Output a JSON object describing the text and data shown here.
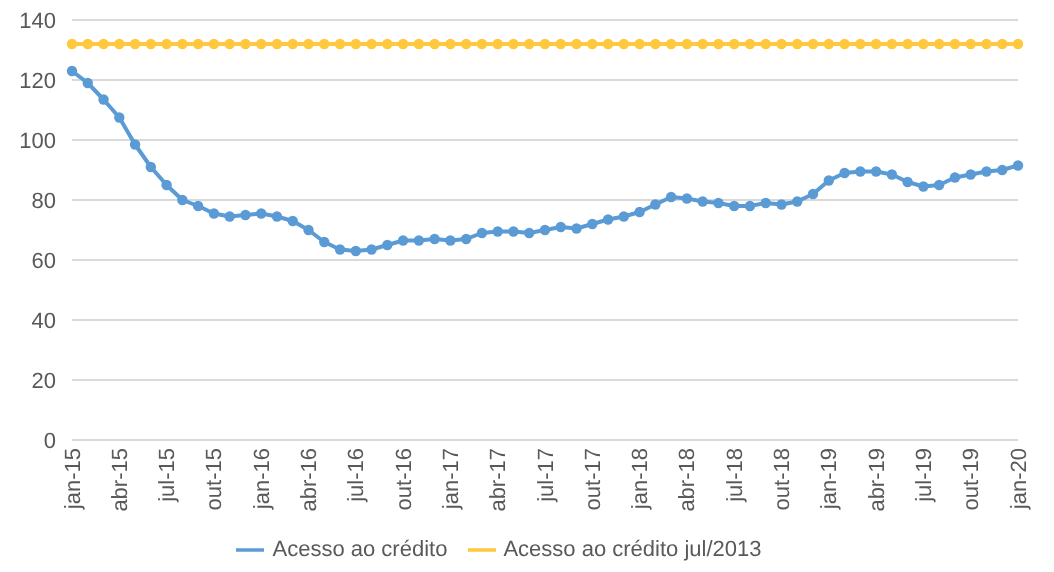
{
  "chart_data": {
    "type": "line",
    "categories": [
      "jan-15",
      null,
      null,
      "abr-15",
      null,
      null,
      "jul-15",
      null,
      null,
      "out-15",
      null,
      null,
      "jan-16",
      null,
      null,
      "abr-16",
      null,
      null,
      "jul-16",
      null,
      null,
      "out-16",
      null,
      null,
      "jan-17",
      null,
      null,
      "abr-17",
      null,
      null,
      "jul-17",
      null,
      null,
      "out-17",
      null,
      null,
      "jan-18",
      null,
      null,
      "abr-18",
      null,
      null,
      "jul-18",
      null,
      null,
      "out-18",
      null,
      null,
      "jan-19",
      null,
      null,
      "abr-19",
      null,
      null,
      "jul-19",
      null,
      null,
      "out-19",
      null,
      null,
      "jan-20"
    ],
    "series": [
      {
        "name": "Acesso ao crédito",
        "color": "#5b9bd5",
        "values": [
          123,
          119,
          113.5,
          107.5,
          98.5,
          91,
          85,
          80,
          78,
          75.5,
          74.5,
          75,
          75.5,
          74.5,
          73,
          70,
          66,
          63.5,
          63,
          63.5,
          65,
          66.5,
          66.5,
          67,
          66.5,
          67,
          69,
          69.5,
          69.5,
          69,
          70,
          71,
          70.5,
          72,
          73.5,
          74.5,
          76,
          78.5,
          81,
          80.5,
          79.5,
          79,
          78,
          78,
          79,
          78.5,
          79.5,
          82,
          86.5,
          89,
          89.5,
          89.5,
          88.5,
          86,
          84.5,
          85,
          87.5,
          88.5,
          89.5,
          90,
          91.5
        ]
      },
      {
        "name": "Acesso ao crédito jul/2013",
        "color": "#ffc83d",
        "values": [
          132,
          132,
          132,
          132,
          132,
          132,
          132,
          132,
          132,
          132,
          132,
          132,
          132,
          132,
          132,
          132,
          132,
          132,
          132,
          132,
          132,
          132,
          132,
          132,
          132,
          132,
          132,
          132,
          132,
          132,
          132,
          132,
          132,
          132,
          132,
          132,
          132,
          132,
          132,
          132,
          132,
          132,
          132,
          132,
          132,
          132,
          132,
          132,
          132,
          132,
          132,
          132,
          132,
          132,
          132,
          132,
          132,
          132,
          132,
          132,
          132
        ]
      }
    ],
    "ylim": [
      0,
      140
    ],
    "yticks": [
      0,
      20,
      40,
      60,
      80,
      100,
      120,
      140
    ],
    "grid": "y",
    "legend": "bottom",
    "marker": "circle",
    "line_style": "solid"
  }
}
